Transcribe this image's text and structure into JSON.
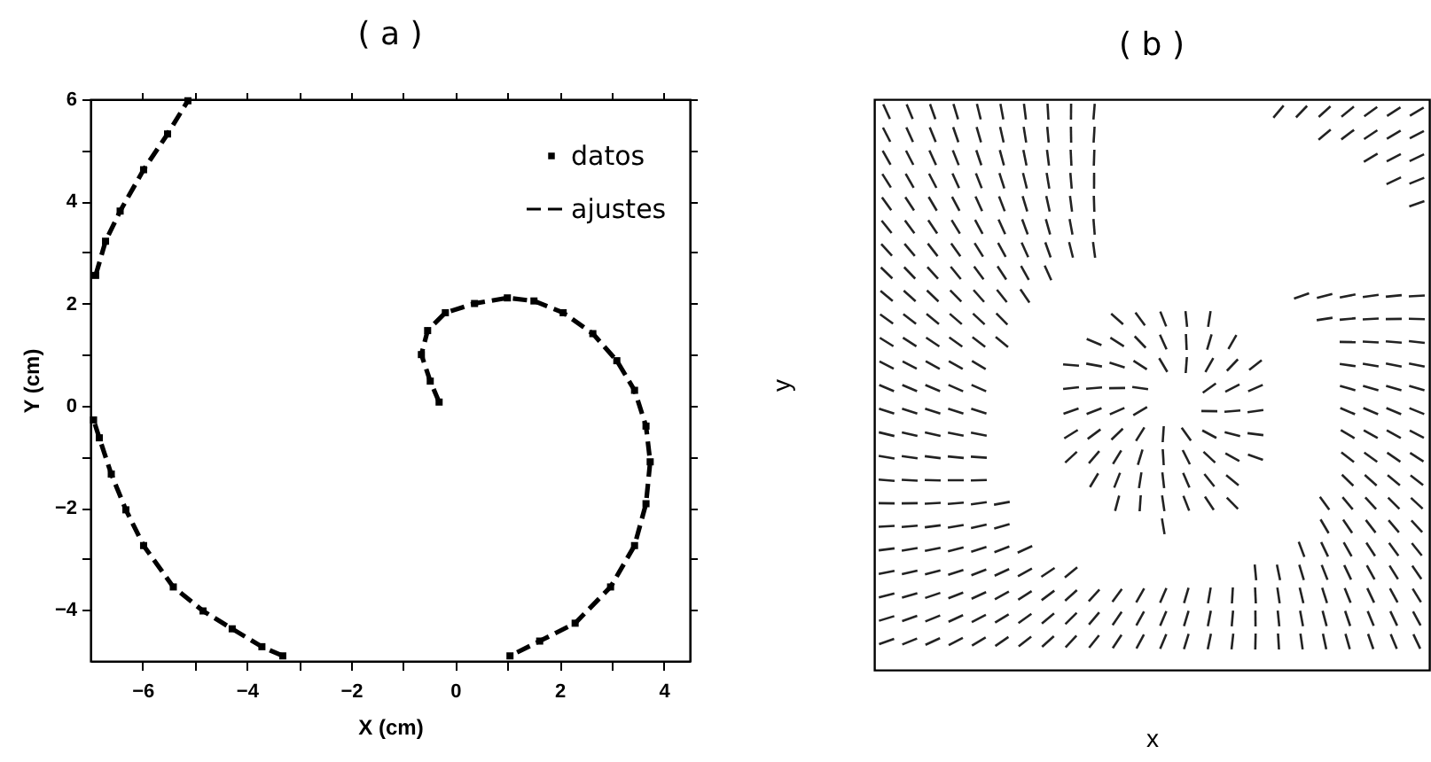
{
  "chart_data": [
    {
      "type": "scatter",
      "title": "( a )",
      "xlabel": "X (cm)",
      "ylabel": "Y (cm)",
      "xlim": [
        -7,
        4.5
      ],
      "ylim": [
        -5,
        6
      ],
      "xticks": [
        -6,
        {
          "value": -5,
          "label": null
        },
        -4,
        {
          "value": -3,
          "label": null
        },
        -2,
        {
          "value": -1,
          "label": null
        },
        0,
        {
          "value": 1,
          "label": null
        },
        2,
        {
          "value": 3,
          "label": null
        },
        4
      ],
      "yticks": [
        -4,
        {
          "value": -3,
          "label": null
        },
        -2,
        {
          "value": -1,
          "label": null
        },
        0,
        {
          "value": 1,
          "label": null
        },
        2,
        {
          "value": 3,
          "label": null
        },
        4,
        {
          "value": 5,
          "label": null
        },
        6
      ],
      "legend": "top right",
      "series": [
        {
          "name": "datos",
          "type": "scatter",
          "marker": "square",
          "color": "#000000",
          "x": [
            -0.31,
            -0.48,
            -0.65,
            -0.53,
            -0.19,
            0.37,
            1.0,
            1.51,
            2.07,
            2.64,
            3.1,
            3.44,
            3.66,
            3.74,
            3.66,
            3.44,
            2.98,
            2.3,
            1.62,
            1.05,
            -3.31,
            -3.71,
            -4.28,
            -4.84,
            -5.41,
            -5.98,
            -6.32,
            -6.6,
            -6.83,
            -6.94,
            -6.9,
            -6.71,
            -6.43,
            -5.98,
            -5.52,
            -5.13
          ],
          "values": [
            0.07,
            0.48,
            1.0,
            1.47,
            1.82,
            2.0,
            2.11,
            2.05,
            1.82,
            1.41,
            0.88,
            0.3,
            -0.4,
            -1.1,
            -1.92,
            -2.74,
            -3.55,
            -4.26,
            -4.61,
            -4.9,
            -4.9,
            -4.72,
            -4.37,
            -4.02,
            -3.55,
            -2.74,
            -2.04,
            -1.34,
            -0.63,
            -0.28,
            2.55,
            3.22,
            3.81,
            4.62,
            5.32,
            5.97
          ]
        },
        {
          "name": "ajustes",
          "type": "line",
          "color": "#000000",
          "line_style": "dashed",
          "x": [
            -0.31,
            -0.48,
            -0.65,
            -0.53,
            -0.19,
            0.37,
            1.0,
            1.51,
            2.07,
            2.64,
            3.1,
            3.44,
            3.66,
            3.74,
            3.66,
            3.44,
            2.98,
            2.3,
            1.62,
            1.05,
            null,
            -3.31,
            -3.71,
            -4.28,
            -4.84,
            -5.41,
            -5.98,
            -6.32,
            -6.6,
            -6.83,
            -6.94,
            null,
            -6.9,
            -6.71,
            -6.43,
            -5.98,
            -5.52,
            -5.13
          ],
          "values": [
            0.07,
            0.48,
            1.0,
            1.47,
            1.82,
            2.0,
            2.11,
            2.05,
            1.82,
            1.41,
            0.88,
            0.3,
            -0.4,
            -1.1,
            -1.92,
            -2.74,
            -3.55,
            -4.26,
            -4.61,
            -4.9,
            null,
            -4.9,
            -4.72,
            -4.37,
            -4.02,
            -3.55,
            -2.74,
            -2.04,
            -1.34,
            -0.63,
            -0.28,
            null,
            2.55,
            3.22,
            3.81,
            4.62,
            5.32,
            5.97
          ]
        }
      ]
    },
    {
      "type": "other",
      "title": "( b )",
      "xlabel": "x",
      "ylabel": "y"
    }
  ]
}
